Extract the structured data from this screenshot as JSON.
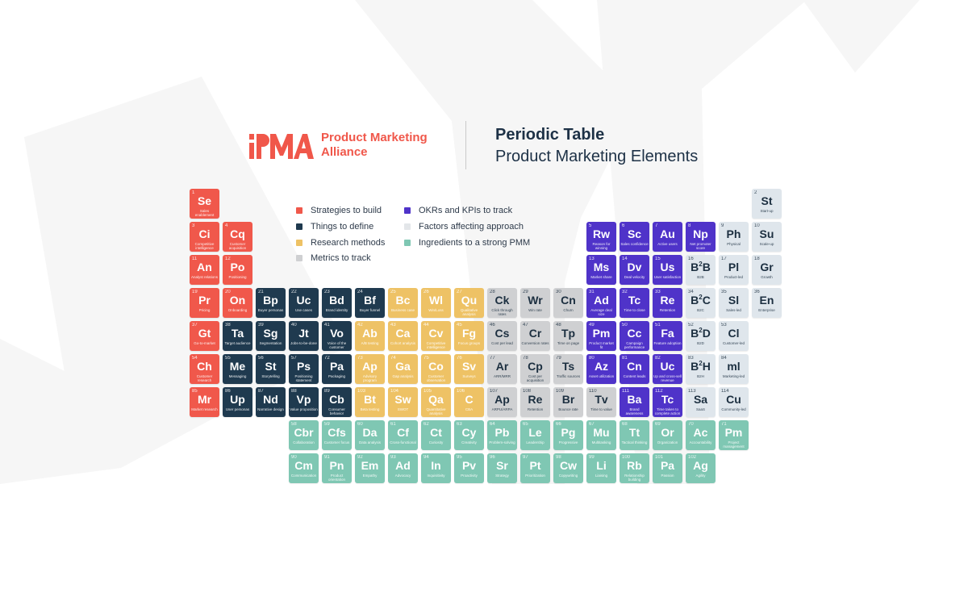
{
  "header": {
    "logo_mark": "PMA",
    "logo_text_line1": "Product Marketing",
    "logo_text_line2": "Alliance",
    "title": "Periodic Table",
    "subtitle": "Product Marketing Elements"
  },
  "colors": {
    "strategies": "#f0584b",
    "things": "#1f3a4f",
    "research": "#eec265",
    "metrics": "#cfd0d2",
    "okrs": "#4f33c9",
    "factors": "#dfe6ec",
    "ingredients": "#7fc7b3",
    "brand": "#f0574a",
    "title": "#1d3146"
  },
  "legend": [
    {
      "label": "Strategies to build",
      "category": "strategies"
    },
    {
      "label": "Things to define",
      "category": "things"
    },
    {
      "label": "Research methods",
      "category": "research"
    },
    {
      "label": "Metrics to track",
      "category": "metrics"
    },
    {
      "label": "OKRs and KPIs to track",
      "category": "okrs"
    },
    {
      "label": "Factors affecting approach",
      "category": "factors"
    },
    {
      "label": "Ingredients to a strong PMM",
      "category": "ingredients"
    }
  ],
  "elements": [
    {
      "n": "1",
      "sym": "Se",
      "name": "Sales enablement",
      "cat": "red",
      "col": 0,
      "row": 0
    },
    {
      "n": "2",
      "sym": "St",
      "name": "Start-up",
      "cat": "light",
      "col": 17,
      "row": 0
    },
    {
      "n": "3",
      "sym": "Ci",
      "name": "Competitive intelligence",
      "cat": "red",
      "col": 0,
      "row": 1
    },
    {
      "n": "4",
      "sym": "Cq",
      "name": "Customer acquisition",
      "cat": "red",
      "col": 1,
      "row": 1
    },
    {
      "n": "5",
      "sym": "Rw",
      "name": "Reason for winning",
      "cat": "purple",
      "col": 12,
      "row": 1
    },
    {
      "n": "6",
      "sym": "Sc",
      "name": "Sales confidence",
      "cat": "purple",
      "col": 13,
      "row": 1
    },
    {
      "n": "7",
      "sym": "Au",
      "name": "Active users",
      "cat": "purple",
      "col": 14,
      "row": 1
    },
    {
      "n": "8",
      "sym": "Np",
      "name": "Net promoter score",
      "cat": "purple",
      "col": 15,
      "row": 1
    },
    {
      "n": "9",
      "sym": "Ph",
      "name": "Physical",
      "cat": "light",
      "col": 16,
      "row": 1
    },
    {
      "n": "10",
      "sym": "Su",
      "name": "Scale-up",
      "cat": "light",
      "col": 17,
      "row": 1
    },
    {
      "n": "11",
      "sym": "An",
      "name": "Analyst relations",
      "cat": "red",
      "col": 0,
      "row": 2
    },
    {
      "n": "12",
      "sym": "Po",
      "name": "Positioning",
      "cat": "red",
      "col": 1,
      "row": 2
    },
    {
      "n": "13",
      "sym": "Ms",
      "name": "Market share",
      "cat": "purple",
      "col": 12,
      "row": 2
    },
    {
      "n": "14",
      "sym": "Dv",
      "name": "Deal velocity",
      "cat": "purple",
      "col": 13,
      "row": 2
    },
    {
      "n": "15",
      "sym": "Us",
      "name": "User satisfaction",
      "cat": "purple",
      "col": 14,
      "row": 2
    },
    {
      "n": "16",
      "sym": "B",
      "sup": "2",
      "sym2": "B",
      "name": "B2B",
      "cat": "light",
      "col": 15,
      "row": 2
    },
    {
      "n": "17",
      "sym": "Pl",
      "name": "Product-led",
      "cat": "light",
      "col": 16,
      "row": 2
    },
    {
      "n": "18",
      "sym": "Gr",
      "name": "Growth",
      "cat": "light",
      "col": 17,
      "row": 2
    },
    {
      "n": "19",
      "sym": "Pr",
      "name": "Pricing",
      "cat": "red",
      "col": 0,
      "row": 3
    },
    {
      "n": "20",
      "sym": "On",
      "name": "Onboarding",
      "cat": "red",
      "col": 1,
      "row": 3
    },
    {
      "n": "21",
      "sym": "Bp",
      "name": "Buyer personas",
      "cat": "navy",
      "col": 2,
      "row": 3
    },
    {
      "n": "22",
      "sym": "Uc",
      "name": "Use cases",
      "cat": "navy",
      "col": 3,
      "row": 3
    },
    {
      "n": "23",
      "sym": "Bd",
      "name": "Brand identity",
      "cat": "navy",
      "col": 4,
      "row": 3
    },
    {
      "n": "24",
      "sym": "Bf",
      "name": "Buyer funnel",
      "cat": "navy",
      "col": 5,
      "row": 3
    },
    {
      "n": "25",
      "sym": "Bc",
      "name": "Business case",
      "cat": "yellow",
      "col": 6,
      "row": 3
    },
    {
      "n": "26",
      "sym": "Wl",
      "name": "Win/Loss",
      "cat": "yellow",
      "col": 7,
      "row": 3
    },
    {
      "n": "27",
      "sym": "Qu",
      "name": "Qualitative analysis",
      "cat": "yellow",
      "col": 8,
      "row": 3
    },
    {
      "n": "28",
      "sym": "Ck",
      "name": "Click through rates",
      "cat": "gray",
      "col": 9,
      "row": 3
    },
    {
      "n": "29",
      "sym": "Wr",
      "name": "Win rate",
      "cat": "gray",
      "col": 10,
      "row": 3
    },
    {
      "n": "30",
      "sym": "Cn",
      "name": "Churn",
      "cat": "gray",
      "col": 11,
      "row": 3
    },
    {
      "n": "31",
      "sym": "Ad",
      "name": "Average deal size",
      "cat": "purple",
      "col": 12,
      "row": 3
    },
    {
      "n": "32",
      "sym": "Tc",
      "name": "Time to close",
      "cat": "purple",
      "col": 13,
      "row": 3
    },
    {
      "n": "33",
      "sym": "Re",
      "name": "Retention",
      "cat": "purple",
      "col": 14,
      "row": 3
    },
    {
      "n": "34",
      "sym": "B",
      "sup": "2",
      "sym2": "C",
      "name": "B2C",
      "cat": "light",
      "col": 15,
      "row": 3
    },
    {
      "n": "35",
      "sym": "Sl",
      "name": "Sales-led",
      "cat": "light",
      "col": 16,
      "row": 3
    },
    {
      "n": "36",
      "sym": "En",
      "name": "Enterprise",
      "cat": "light",
      "col": 17,
      "row": 3
    },
    {
      "n": "37",
      "sym": "Gt",
      "name": "Go-to-market",
      "cat": "red",
      "col": 0,
      "row": 4
    },
    {
      "n": "38",
      "sym": "Ta",
      "name": "Target audience",
      "cat": "navy",
      "col": 1,
      "row": 4
    },
    {
      "n": "39",
      "sym": "Sg",
      "name": "Segmentation",
      "cat": "navy",
      "col": 2,
      "row": 4
    },
    {
      "n": "40",
      "sym": "Jt",
      "name": "Jobs-to-be-done",
      "cat": "navy",
      "col": 3,
      "row": 4
    },
    {
      "n": "41",
      "sym": "Vo",
      "name": "Voice of the customer",
      "cat": "navy",
      "col": 4,
      "row": 4
    },
    {
      "n": "42",
      "sym": "Ab",
      "name": "A/B testing",
      "cat": "yellow",
      "col": 5,
      "row": 4
    },
    {
      "n": "43",
      "sym": "Ca",
      "name": "Cohort analysis",
      "cat": "yellow",
      "col": 6,
      "row": 4
    },
    {
      "n": "44",
      "sym": "Cv",
      "name": "Competitive intelligence",
      "cat": "yellow",
      "col": 7,
      "row": 4
    },
    {
      "n": "45",
      "sym": "Fg",
      "name": "Focus groups",
      "cat": "yellow",
      "col": 8,
      "row": 4
    },
    {
      "n": "46",
      "sym": "Cs",
      "name": "Cost per lead",
      "cat": "gray",
      "col": 9,
      "row": 4
    },
    {
      "n": "47",
      "sym": "Cr",
      "name": "Conversion rates",
      "cat": "gray",
      "col": 10,
      "row": 4
    },
    {
      "n": "48",
      "sym": "Tp",
      "name": "Time on page",
      "cat": "gray",
      "col": 11,
      "row": 4
    },
    {
      "n": "49",
      "sym": "Pm",
      "name": "Product market fit",
      "cat": "purple",
      "col": 12,
      "row": 4
    },
    {
      "n": "50",
      "sym": "Cc",
      "name": "Campaign performance",
      "cat": "purple",
      "col": 13,
      "row": 4
    },
    {
      "n": "51",
      "sym": "Fa",
      "name": "Feature adoption",
      "cat": "purple",
      "col": 14,
      "row": 4
    },
    {
      "n": "52",
      "sym": "B",
      "sup": "2",
      "sym2": "D",
      "name": "B2D",
      "cat": "light",
      "col": 15,
      "row": 4
    },
    {
      "n": "53",
      "sym": "Cl",
      "name": "Customer-led",
      "cat": "light",
      "col": 16,
      "row": 4
    },
    {
      "n": "54",
      "sym": "Ch",
      "name": "Customer research",
      "cat": "red",
      "col": 0,
      "row": 5
    },
    {
      "n": "55",
      "sym": "Me",
      "name": "Messaging",
      "cat": "navy",
      "col": 1,
      "row": 5
    },
    {
      "n": "56",
      "sym": "St",
      "name": "Storytelling",
      "cat": "navy",
      "col": 2,
      "row": 5
    },
    {
      "n": "57",
      "sym": "Ps",
      "name": "Positioning statement",
      "cat": "navy",
      "col": 3,
      "row": 5
    },
    {
      "n": "72",
      "sym": "Pa",
      "name": "Packaging",
      "cat": "navy",
      "col": 4,
      "row": 5
    },
    {
      "n": "73",
      "sym": "Ap",
      "name": "Advisory program",
      "cat": "yellow",
      "col": 5,
      "row": 5
    },
    {
      "n": "74",
      "sym": "Ga",
      "name": "Gap analysis",
      "cat": "yellow",
      "col": 6,
      "row": 5
    },
    {
      "n": "75",
      "sym": "Co",
      "name": "Customer observation",
      "cat": "yellow",
      "col": 7,
      "row": 5
    },
    {
      "n": "76",
      "sym": "Sv",
      "name": "Surveys",
      "cat": "yellow",
      "col": 8,
      "row": 5
    },
    {
      "n": "77",
      "sym": "Ar",
      "name": "ARR/MRR",
      "cat": "gray",
      "col": 9,
      "row": 5
    },
    {
      "n": "78",
      "sym": "Cp",
      "name": "Cost per acquisition",
      "cat": "gray",
      "col": 10,
      "row": 5
    },
    {
      "n": "79",
      "sym": "Ts",
      "name": "Traffic sources",
      "cat": "gray",
      "col": 11,
      "row": 5
    },
    {
      "n": "80",
      "sym": "Az",
      "name": "Asset utilization",
      "cat": "purple",
      "col": 12,
      "row": 5
    },
    {
      "n": "81",
      "sym": "Cn",
      "name": "Content leads",
      "cat": "purple",
      "col": 13,
      "row": 5
    },
    {
      "n": "82",
      "sym": "Uc",
      "name": "Up and cross-sell revenue",
      "cat": "purple",
      "col": 14,
      "row": 5
    },
    {
      "n": "83",
      "sym": "B",
      "sup": "2",
      "sym2": "H",
      "name": "B2H",
      "cat": "light",
      "col": 15,
      "row": 5
    },
    {
      "n": "84",
      "sym": "ml",
      "name": "Marketing-led",
      "cat": "light",
      "col": 16,
      "row": 5
    },
    {
      "n": "85",
      "sym": "Mr",
      "name": "Market research",
      "cat": "red",
      "col": 0,
      "row": 6
    },
    {
      "n": "86",
      "sym": "Up",
      "name": "User personas",
      "cat": "navy",
      "col": 1,
      "row": 6
    },
    {
      "n": "87",
      "sym": "Nd",
      "name": "Narrative design",
      "cat": "navy",
      "col": 2,
      "row": 6
    },
    {
      "n": "88",
      "sym": "Vp",
      "name": "Value proposition",
      "cat": "navy",
      "col": 3,
      "row": 6
    },
    {
      "n": "89",
      "sym": "Cb",
      "name": "Consumer behavior",
      "cat": "navy",
      "col": 4,
      "row": 6
    },
    {
      "n": "103",
      "sym": "Bt",
      "name": "Beta testing",
      "cat": "yellow",
      "col": 5,
      "row": 6
    },
    {
      "n": "104",
      "sym": "Sw",
      "name": "SWOT",
      "cat": "yellow",
      "col": 6,
      "row": 6
    },
    {
      "n": "105",
      "sym": "Qa",
      "name": "Quantitative analysis",
      "cat": "yellow",
      "col": 7,
      "row": 6
    },
    {
      "n": "106",
      "sym": "C",
      "name": "CBA",
      "cat": "yellow",
      "col": 8,
      "row": 6
    },
    {
      "n": "107",
      "sym": "Ap",
      "name": "ARPU/ARPA",
      "cat": "gray",
      "col": 9,
      "row": 6
    },
    {
      "n": "108",
      "sym": "Re",
      "name": "Retention",
      "cat": "gray",
      "col": 10,
      "row": 6
    },
    {
      "n": "109",
      "sym": "Br",
      "name": "Bounce rate",
      "cat": "gray",
      "col": 11,
      "row": 6
    },
    {
      "n": "110",
      "sym": "Tv",
      "name": "Time to value",
      "cat": "gray",
      "col": 12,
      "row": 6
    },
    {
      "n": "111",
      "sym": "Ba",
      "name": "Brand awareness",
      "cat": "purple",
      "col": 13,
      "row": 6
    },
    {
      "n": "112",
      "sym": "Tc",
      "name": "Time taken to complete action",
      "cat": "purple",
      "col": 14,
      "row": 6
    },
    {
      "n": "113",
      "sym": "Sa",
      "name": "SaaS",
      "cat": "light",
      "col": 15,
      "row": 6
    },
    {
      "n": "114",
      "sym": "Cu",
      "name": "Community-led",
      "cat": "light",
      "col": 16,
      "row": 6
    },
    {
      "n": "58",
      "sym": "Cbr",
      "name": "Collaboration",
      "cat": "teal",
      "col": 3,
      "row": 7
    },
    {
      "n": "59",
      "sym": "Cfs",
      "name": "Customer focus",
      "cat": "teal",
      "col": 4,
      "row": 7
    },
    {
      "n": "60",
      "sym": "Da",
      "name": "Data analysis",
      "cat": "teal",
      "col": 5,
      "row": 7
    },
    {
      "n": "61",
      "sym": "Cf",
      "name": "Cross-functional",
      "cat": "teal",
      "col": 6,
      "row": 7
    },
    {
      "n": "62",
      "sym": "Ct",
      "name": "Curiosity",
      "cat": "teal",
      "col": 7,
      "row": 7
    },
    {
      "n": "63",
      "sym": "Cy",
      "name": "Creativity",
      "cat": "teal",
      "col": 8,
      "row": 7
    },
    {
      "n": "64",
      "sym": "Pb",
      "name": "Problem-solving",
      "cat": "teal",
      "col": 9,
      "row": 7
    },
    {
      "n": "65",
      "sym": "Le",
      "name": "Leadership",
      "cat": "teal",
      "col": 10,
      "row": 7
    },
    {
      "n": "66",
      "sym": "Pg",
      "name": "Progressive",
      "cat": "teal",
      "col": 11,
      "row": 7
    },
    {
      "n": "67",
      "sym": "Mu",
      "name": "Multitasking",
      "cat": "teal",
      "col": 12,
      "row": 7
    },
    {
      "n": "68",
      "sym": "Tt",
      "name": "Tactical thinking",
      "cat": "teal",
      "col": 13,
      "row": 7
    },
    {
      "n": "69",
      "sym": "Or",
      "name": "Organization",
      "cat": "teal",
      "col": 14,
      "row": 7
    },
    {
      "n": "70",
      "sym": "Ac",
      "name": "Accountability",
      "cat": "teal",
      "col": 15,
      "row": 7
    },
    {
      "n": "71",
      "sym": "Pm",
      "name": "Project management",
      "cat": "teal",
      "col": 16,
      "row": 7
    },
    {
      "n": "90",
      "sym": "Cm",
      "name": "Communication",
      "cat": "teal",
      "col": 3,
      "row": 8
    },
    {
      "n": "91",
      "sym": "Pn",
      "name": "Product orientation",
      "cat": "teal",
      "col": 4,
      "row": 8
    },
    {
      "n": "92",
      "sym": "Em",
      "name": "Empathy",
      "cat": "teal",
      "col": 5,
      "row": 8
    },
    {
      "n": "93",
      "sym": "Ad",
      "name": "Advocacy",
      "cat": "teal",
      "col": 6,
      "row": 8
    },
    {
      "n": "94",
      "sym": "In",
      "name": "Inquisitivity",
      "cat": "teal",
      "col": 7,
      "row": 8
    },
    {
      "n": "95",
      "sym": "Pv",
      "name": "Proactivity",
      "cat": "teal",
      "col": 8,
      "row": 8
    },
    {
      "n": "96",
      "sym": "Sr",
      "name": "Strategy",
      "cat": "teal",
      "col": 9,
      "row": 8
    },
    {
      "n": "97",
      "sym": "Pt",
      "name": "Prioritization",
      "cat": "teal",
      "col": 10,
      "row": 8
    },
    {
      "n": "98",
      "sym": "Cw",
      "name": "Copywriting",
      "cat": "teal",
      "col": 11,
      "row": 8
    },
    {
      "n": "99",
      "sym": "Li",
      "name": "Liaising",
      "cat": "teal",
      "col": 12,
      "row": 8
    },
    {
      "n": "100",
      "sym": "Rb",
      "name": "Relationship building",
      "cat": "teal",
      "col": 13,
      "row": 8
    },
    {
      "n": "101",
      "sym": "Pa",
      "name": "Passion",
      "cat": "teal",
      "col": 14,
      "row": 8
    },
    {
      "n": "102",
      "sym": "Ag",
      "name": "Agility",
      "cat": "teal",
      "col": 15,
      "row": 8
    }
  ]
}
